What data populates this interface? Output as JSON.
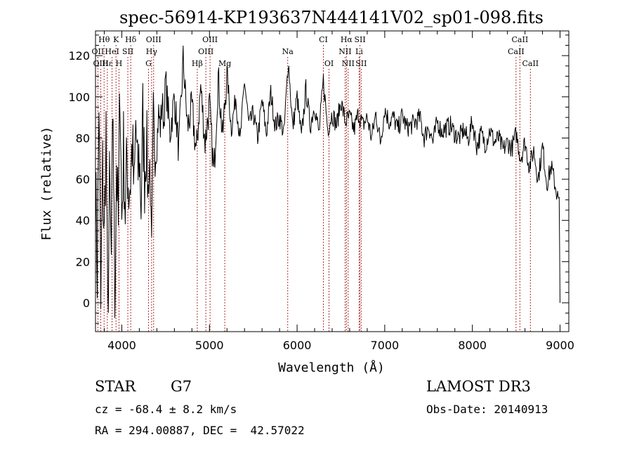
{
  "chart_data": {
    "type": "line",
    "title": "spec-56914-KP193637N444141V02_sp01-098.fits",
    "xlabel": "Wavelength (Å)",
    "ylabel": "Flux (relative)",
    "xlim": [
      3700,
      9100
    ],
    "ylim": [
      -14,
      132
    ],
    "xticks": [
      4000,
      5000,
      6000,
      7000,
      8000,
      9000
    ],
    "yticks": [
      0,
      20,
      40,
      60,
      80,
      100,
      120
    ],
    "x": [
      3700,
      3720,
      3740,
      3760,
      3780,
      3800,
      3820,
      3840,
      3860,
      3880,
      3900,
      3920,
      3940,
      3960,
      3980,
      4000,
      4020,
      4040,
      4060,
      4080,
      4100,
      4120,
      4140,
      4160,
      4180,
      4200,
      4220,
      4240,
      4260,
      4280,
      4300,
      4320,
      4340,
      4360,
      4380,
      4400,
      4420,
      4440,
      4460,
      4480,
      4500,
      4550,
      4600,
      4650,
      4700,
      4750,
      4800,
      4850,
      4900,
      4950,
      5000,
      5050,
      5100,
      5150,
      5200,
      5250,
      5300,
      5350,
      5400,
      5450,
      5500,
      5550,
      5600,
      5650,
      5700,
      5750,
      5800,
      5850,
      5900,
      5950,
      6000,
      6050,
      6100,
      6150,
      6200,
      6250,
      6300,
      6350,
      6400,
      6450,
      6500,
      6550,
      6600,
      6650,
      6700,
      6750,
      6800,
      6850,
      6900,
      6950,
      7000,
      7050,
      7100,
      7150,
      7200,
      7250,
      7300,
      7350,
      7400,
      7450,
      7500,
      7550,
      7600,
      7650,
      7700,
      7750,
      7800,
      7850,
      7900,
      7950,
      8000,
      8050,
      8100,
      8150,
      8200,
      8250,
      8300,
      8350,
      8400,
      8450,
      8500,
      8550,
      8600,
      8650,
      8700,
      8750,
      8800,
      8850,
      8900,
      8950,
      8990,
      9000
    ],
    "y": [
      60,
      15,
      100,
      -5,
      65,
      30,
      85,
      -10,
      55,
      20,
      95,
      0,
      70,
      35,
      110,
      40,
      75,
      45,
      70,
      55,
      60,
      78,
      50,
      88,
      60,
      72,
      48,
      90,
      62,
      80,
      55,
      68,
      25,
      95,
      70,
      78,
      92,
      85,
      98,
      88,
      108,
      82,
      100,
      74,
      118,
      85,
      95,
      72,
      105,
      78,
      96,
      62,
      110,
      80,
      112,
      84,
      100,
      78,
      108,
      86,
      92,
      80,
      98,
      82,
      102,
      86,
      90,
      82,
      118,
      85,
      100,
      80,
      104,
      86,
      96,
      82,
      108,
      84,
      92,
      86,
      98,
      88,
      90,
      84,
      92,
      86,
      90,
      80,
      92,
      78,
      94,
      88,
      90,
      84,
      91,
      85,
      86,
      88,
      90,
      80,
      86,
      78,
      88,
      83,
      85,
      86,
      82,
      80,
      84,
      79,
      88,
      76,
      82,
      77,
      84,
      78,
      80,
      74,
      78,
      75,
      82,
      70,
      78,
      66,
      74,
      60,
      76,
      58,
      66,
      56,
      48,
      0
    ],
    "lines": [
      {
        "label": "Hθ",
        "wave": 3798,
        "row": 0
      },
      {
        "label": "K",
        "wave": 3934,
        "row": 0
      },
      {
        "label": "Hδ",
        "wave": 4102,
        "row": 0
      },
      {
        "label": "OIII",
        "wave": 4363,
        "row": 0
      },
      {
        "label": "OIII",
        "wave": 5007,
        "row": 0
      },
      {
        "label": "CI",
        "wave": 6300,
        "row": 0
      },
      {
        "label": "Hα",
        "wave": 6563,
        "row": 0
      },
      {
        "label": "SII",
        "wave": 6717,
        "row": 0
      },
      {
        "label": "CaII",
        "wave": 8542,
        "row": 0
      },
      {
        "label": "OII",
        "wave": 3727,
        "row": 1
      },
      {
        "label": "HeI",
        "wave": 3889,
        "row": 1
      },
      {
        "label": "SII",
        "wave": 4069,
        "row": 1
      },
      {
        "label": "Hγ",
        "wave": 4340,
        "row": 1
      },
      {
        "label": "OIII",
        "wave": 4959,
        "row": 1
      },
      {
        "label": "Na",
        "wave": 5893,
        "row": 1
      },
      {
        "label": "NII",
        "wave": 6548,
        "row": 1
      },
      {
        "label": "Li",
        "wave": 6708,
        "row": 1
      },
      {
        "label": "CaII",
        "wave": 8498,
        "row": 1
      },
      {
        "label": "OIII",
        "wave": 3760,
        "row": 2
      },
      {
        "label": "Hε",
        "wave": 3835,
        "row": 2
      },
      {
        "label": "H",
        "wave": 3968,
        "row": 2
      },
      {
        "label": "G",
        "wave": 4305,
        "row": 2
      },
      {
        "label": "Hβ",
        "wave": 4861,
        "row": 2
      },
      {
        "label": "Mg",
        "wave": 5175,
        "row": 2
      },
      {
        "label": "OI",
        "wave": 6364,
        "row": 2
      },
      {
        "label": "NII",
        "wave": 6583,
        "row": 2
      },
      {
        "label": "SII",
        "wave": 6731,
        "row": 2
      },
      {
        "label": "CaII",
        "wave": 8662,
        "row": 2
      }
    ]
  },
  "info": {
    "object_class": "STAR",
    "subclass": "G7",
    "survey": "LAMOST DR3",
    "cz": "cz = -68.4 ± 8.2 km/s",
    "obs_date": "Obs-Date: 20140913",
    "coords": "RA = 294.00887, DEC =  42.57022"
  }
}
